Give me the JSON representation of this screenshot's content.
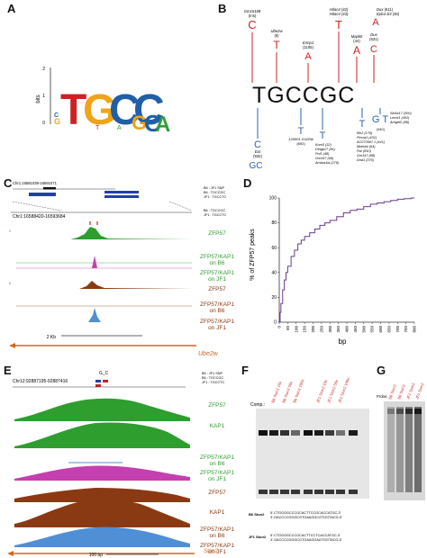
{
  "panels": {
    "a": "A",
    "b": "B",
    "c": "C",
    "d": "D",
    "e": "E",
    "f": "F",
    "g": "G"
  },
  "panelA": {
    "ylabel": "bits",
    "yticks": [
      "2",
      "1",
      "0"
    ],
    "logo_letters": [
      "T",
      "G",
      "C",
      "C",
      "G",
      "C",
      "A"
    ],
    "colors": {
      "T": "#cc2222",
      "G": "#f0a418",
      "C": "#1f5fa8",
      "A": "#2f9e3a"
    }
  },
  "panelB": {
    "motif": "TGCCGC",
    "up_labels": [
      "Gm16188\n(Ins)",
      "Ube2w\n(6)",
      "Ermp1\n(1105)",
      "Hdac4 (42)\nHdac4 (43)",
      "Mapk6\n(44)",
      "Dux (611)\nEpb4.1l3 (48)",
      "Dux\n(631)"
    ],
    "down_labels": [
      "C\nEar\n(932)",
      "GC\nEar\n(Ins)",
      "T\n120001 G11Rik\n(692)",
      "T\nKnrs5 (32)\nDelgb17 (81)\nPol1 (48)\nDap1 (48)\nGm347 (66)\nAmbra1la (276)",
      "T\nIfih2 (176)\nPtrcra1 (431)\nAC073967.1 (441)\nMnfeb4 (64)\nPar (810)\nGm347 (88)\nDnd1 (370)",
      "G T\nSlc6a17 (300)\nLmcd1 (402)\nArhgef2 (88)\n(940)"
    ]
  },
  "panelC": {
    "coords_top": "Chr1:16581039-16591071",
    "coords_zoom": "Chr1:16588420-16593684",
    "legend_lines": [
      "B6 : JF1 SNP",
      "B6 : TGCCGC",
      "JF1 : TGCCTC"
    ],
    "legend_lines2": [
      "B6 : TGCCGC",
      "JF1 : TGCCTC"
    ],
    "tracks": [
      {
        "label": "ZFP57",
        "color": "#2e9e2e"
      },
      {
        "label": "ZFP57/KAP1\non B6",
        "color": "#2e9e2e"
      },
      {
        "label": "ZFP57/KAP1\non JF1",
        "color": "#2e9e2e"
      },
      {
        "label": "ZFP57",
        "color": "#8a3a12"
      },
      {
        "label": "ZFP57/KAP1\non B6",
        "color": "#8a3a12"
      },
      {
        "label": "ZFP57/KAP1\non JF1",
        "color": "#8a3a12"
      }
    ],
    "scale": "2 Kb",
    "gene": "Ube2w"
  },
  "panelD": {
    "ylabel": "% of ZFP57 peaks",
    "xlabel": "bp"
  },
  "panelE": {
    "coords": "Chr12:92887195-92887416",
    "snp_label": "G_C",
    "legend_lines": [
      "B6 : JF1 SNP",
      "B6 : TGCCGC",
      "JF1 : TGCCTC"
    ],
    "tracks": [
      {
        "label": "ZFP57",
        "color": "#2e9e2e"
      },
      {
        "label": "KAP1",
        "color": "#2e9e2e"
      },
      {
        "label": "ZFP57/KAP1\non B6",
        "color": "#2e9e2e"
      },
      {
        "label": "ZFP57/KAP1\non JF1",
        "color": "#2e9e2e"
      },
      {
        "label": "ZFP57",
        "color": "#8a3a12"
      },
      {
        "label": "KAP1",
        "color": "#8a3a12"
      },
      {
        "label": "ZFP57/KAP1\non B6",
        "color": "#8a3a12"
      },
      {
        "label": "ZFP57/KAP1\non JF1",
        "color": "#8a3a12"
      }
    ],
    "scale": "100 bp",
    "gene": "Ston2"
  },
  "panelF": {
    "comp_label": "Comp.:",
    "lane_labels": [
      "B6 Ston2 10x",
      "B6 Ston2 50x",
      "B6 Ston2 100x",
      "JF1 Ston2 10x",
      "JF1 Ston2 50x",
      "JF1 Ston2 100x"
    ],
    "b6_name": "B6 Ston2",
    "b6_seq1": "5'-CTGGGGCCCGCACTTCCGCACCATGC-3'",
    "b6_seq2": "3'-GACCCCGGGCGTGAAGGCGTGGTACG-5'",
    "jf1_name": "JF1 Ston2",
    "jf1_seq1": "5'-CTGGGGCCCGCACTTCCTCACCATGC-3'",
    "jf1_seq2": "3'-GACCCCGGGCGTGAAGGAGTGGTACG-5'"
  },
  "panelG": {
    "probe_label": "Probe:",
    "lane_labels": [
      "B6 Ston2",
      "B6 Ston2",
      "JF1 Ston2",
      "JF1 Ston2"
    ]
  },
  "chart_data": {
    "type": "line",
    "title": "",
    "xlabel": "bp",
    "ylabel": "% of ZFP57 peaks",
    "xlim": [
      0,
      800
    ],
    "ylim": [
      0,
      100
    ],
    "xticks": [
      0,
      50,
      100,
      150,
      200,
      250,
      300,
      350,
      400,
      450,
      500,
      550,
      600,
      650,
      700,
      750,
      800
    ],
    "yticks": [
      0,
      20,
      40,
      60,
      80,
      100
    ],
    "series": [
      {
        "color": "#6a3c8c",
        "x": [
          0,
          5,
          10,
          20,
          30,
          40,
          50,
          70,
          90,
          110,
          130,
          150,
          180,
          210,
          240,
          270,
          300,
          340,
          380,
          420,
          460,
          500,
          540,
          580,
          620,
          660,
          700,
          740,
          780,
          800
        ],
        "y": [
          0,
          8,
          15,
          26,
          34,
          40,
          45,
          53,
          58,
          63,
          66,
          69,
          72,
          75,
          78,
          80,
          82,
          85,
          88,
          90,
          91,
          93,
          95,
          96,
          97,
          98,
          99,
          99.5,
          100,
          100
        ]
      }
    ]
  }
}
